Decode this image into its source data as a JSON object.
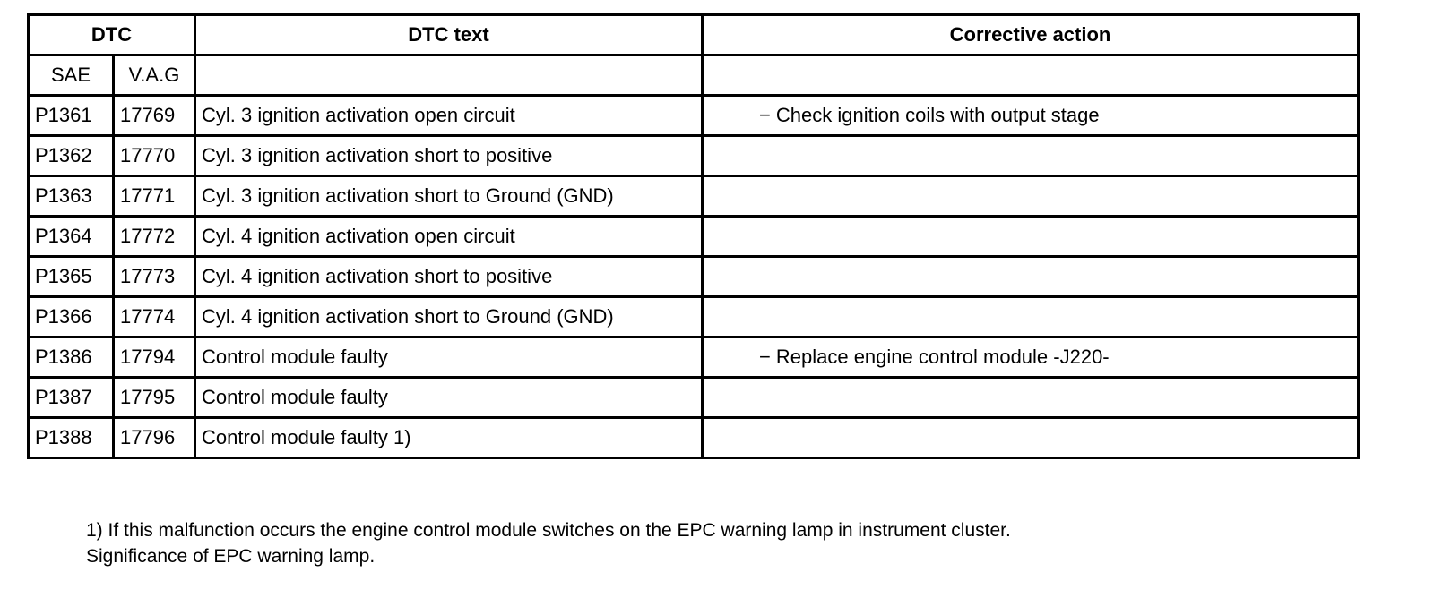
{
  "table": {
    "headers": {
      "dtc": "DTC",
      "dtc_text": "DTC text",
      "corrective_action": "Corrective action"
    },
    "subheaders": {
      "sae": "SAE",
      "vag": "V.A.G"
    },
    "rows": [
      {
        "sae": "P1361",
        "vag": "17769",
        "text": "Cyl. 3 ignition activation open circuit",
        "action": "Check ignition coils with output stage"
      },
      {
        "sae": "P1362",
        "vag": "17770",
        "text": "Cyl. 3 ignition activation short to positive",
        "action": ""
      },
      {
        "sae": "P1363",
        "vag": "17771",
        "text": "Cyl. 3 ignition activation short to Ground (GND)",
        "action": ""
      },
      {
        "sae": "P1364",
        "vag": "17772",
        "text": "Cyl. 4 ignition activation open circuit",
        "action": ""
      },
      {
        "sae": "P1365",
        "vag": "17773",
        "text": "Cyl. 4 ignition activation short to positive",
        "action": ""
      },
      {
        "sae": "P1366",
        "vag": "17774",
        "text": "Cyl. 4 ignition activation short to Ground (GND)",
        "action": ""
      },
      {
        "sae": "P1386",
        "vag": "17794",
        "text": "Control module faulty",
        "action": "Replace engine control module -J220-"
      },
      {
        "sae": "P1387",
        "vag": "17795",
        "text": "Control module faulty",
        "action": ""
      },
      {
        "sae": "P1388",
        "vag": "17796",
        "text": "Control module faulty 1)",
        "action": ""
      }
    ]
  },
  "footnote": {
    "line1": "1) If this malfunction occurs the engine control module switches on the EPC warning lamp in instrument cluster.",
    "line2": "Significance of EPC warning lamp."
  }
}
